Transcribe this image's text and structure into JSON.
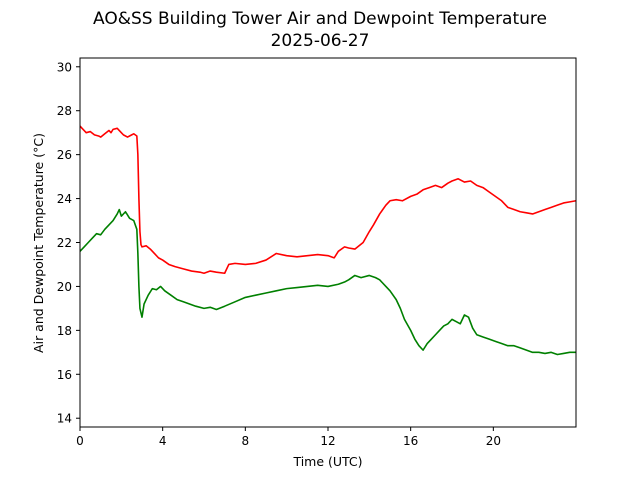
{
  "chart_data": {
    "type": "line",
    "title": "AO&SS Building Tower Air and Dewpoint Temperature",
    "subtitle": "2025-06-27",
    "xlabel": "Time (UTC)",
    "ylabel": "Air and Dewpoint Temperature (°C)",
    "xlim": [
      0,
      24
    ],
    "ylim": [
      13.6,
      30.4
    ],
    "x_ticks": [
      0,
      4,
      8,
      12,
      16,
      20
    ],
    "x_tick_labels": [
      "0",
      "4",
      "8",
      "12",
      "16",
      "20"
    ],
    "y_ticks": [
      14,
      16,
      18,
      20,
      22,
      24,
      26,
      28,
      30
    ],
    "y_tick_labels": [
      "14",
      "16",
      "18",
      "20",
      "22",
      "24",
      "26",
      "28",
      "30"
    ],
    "grid": false,
    "series": [
      {
        "color": "#ff0000",
        "x": [
          0,
          0.1,
          0.3,
          0.5,
          0.7,
          0.9,
          1.0,
          1.2,
          1.4,
          1.5,
          1.6,
          1.8,
          2.0,
          2.1,
          2.3,
          2.5,
          2.6,
          2.75,
          2.8,
          2.85,
          2.9,
          2.95,
          3.0,
          3.2,
          3.4,
          3.6,
          3.8,
          4.0,
          4.3,
          4.6,
          5.0,
          5.4,
          5.8,
          6.0,
          6.3,
          6.6,
          7.0,
          7.2,
          7.5,
          8.0,
          8.5,
          9.0,
          9.5,
          10.0,
          10.5,
          11.0,
          11.5,
          12.0,
          12.3,
          12.5,
          12.8,
          13.0,
          13.3,
          13.7,
          14.0,
          14.2,
          14.5,
          14.8,
          15.0,
          15.3,
          15.6,
          16.0,
          16.3,
          16.6,
          16.9,
          17.2,
          17.5,
          17.8,
          18.0,
          18.3,
          18.6,
          18.9,
          19.2,
          19.5,
          19.8,
          20.1,
          20.4,
          20.7,
          21.0,
          21.3,
          21.6,
          21.9,
          22.2,
          22.5,
          22.8,
          23.1,
          23.4,
          23.7,
          24.0
        ],
        "values": [
          27.3,
          27.2,
          27.0,
          27.05,
          26.9,
          26.85,
          26.8,
          26.95,
          27.1,
          27.0,
          27.15,
          27.2,
          27.0,
          26.9,
          26.8,
          26.9,
          26.95,
          26.85,
          26.0,
          24.0,
          22.5,
          21.9,
          21.8,
          21.85,
          21.7,
          21.5,
          21.3,
          21.2,
          21.0,
          20.9,
          20.8,
          20.7,
          20.65,
          20.6,
          20.7,
          20.65,
          20.6,
          21.0,
          21.05,
          21.0,
          21.05,
          21.2,
          21.5,
          21.4,
          21.35,
          21.4,
          21.45,
          21.4,
          21.3,
          21.6,
          21.8,
          21.75,
          21.7,
          22.0,
          22.5,
          22.8,
          23.3,
          23.7,
          23.9,
          23.95,
          23.9,
          24.1,
          24.2,
          24.4,
          24.5,
          24.6,
          24.5,
          24.7,
          24.8,
          24.9,
          24.75,
          24.8,
          24.6,
          24.5,
          24.3,
          24.1,
          23.9,
          23.6,
          23.5,
          23.4,
          23.35,
          23.3,
          23.4,
          23.5,
          23.6,
          23.7,
          23.8,
          23.85,
          23.9
        ]
      },
      {
        "color": "#008000",
        "x": [
          0,
          0.2,
          0.4,
          0.6,
          0.8,
          1.0,
          1.2,
          1.4,
          1.6,
          1.8,
          1.9,
          2.0,
          2.2,
          2.4,
          2.6,
          2.75,
          2.8,
          2.85,
          2.9,
          3.0,
          3.1,
          3.3,
          3.5,
          3.7,
          3.9,
          4.1,
          4.4,
          4.7,
          5.0,
          5.3,
          5.6,
          6.0,
          6.3,
          6.6,
          7.0,
          7.5,
          8.0,
          8.5,
          9.0,
          9.5,
          10.0,
          10.5,
          11.0,
          11.5,
          12.0,
          12.5,
          12.8,
          13.0,
          13.3,
          13.6,
          14.0,
          14.3,
          14.5,
          14.8,
          15.0,
          15.3,
          15.5,
          15.7,
          16.0,
          16.2,
          16.4,
          16.6,
          16.8,
          17.0,
          17.2,
          17.4,
          17.6,
          17.8,
          18.0,
          18.2,
          18.4,
          18.6,
          18.8,
          19.0,
          19.2,
          19.5,
          19.8,
          20.1,
          20.4,
          20.7,
          21.0,
          21.3,
          21.6,
          21.9,
          22.2,
          22.5,
          22.8,
          23.1,
          23.4,
          23.7,
          24.0
        ],
        "values": [
          21.6,
          21.8,
          22.0,
          22.2,
          22.4,
          22.35,
          22.6,
          22.8,
          23.0,
          23.3,
          23.5,
          23.2,
          23.4,
          23.1,
          23.0,
          22.6,
          21.5,
          20.0,
          19.0,
          18.6,
          19.2,
          19.6,
          19.9,
          19.85,
          20.0,
          19.8,
          19.6,
          19.4,
          19.3,
          19.2,
          19.1,
          19.0,
          19.05,
          18.95,
          19.1,
          19.3,
          19.5,
          19.6,
          19.7,
          19.8,
          19.9,
          19.95,
          20.0,
          20.05,
          20.0,
          20.1,
          20.2,
          20.3,
          20.5,
          20.4,
          20.5,
          20.4,
          20.3,
          20.0,
          19.8,
          19.4,
          19.0,
          18.5,
          18.0,
          17.6,
          17.3,
          17.1,
          17.4,
          17.6,
          17.8,
          18.0,
          18.2,
          18.3,
          18.5,
          18.4,
          18.3,
          18.7,
          18.6,
          18.1,
          17.8,
          17.7,
          17.6,
          17.5,
          17.4,
          17.3,
          17.3,
          17.2,
          17.1,
          17.0,
          17.0,
          16.95,
          17.0,
          16.9,
          16.95,
          17.0,
          17.0
        ]
      }
    ]
  }
}
